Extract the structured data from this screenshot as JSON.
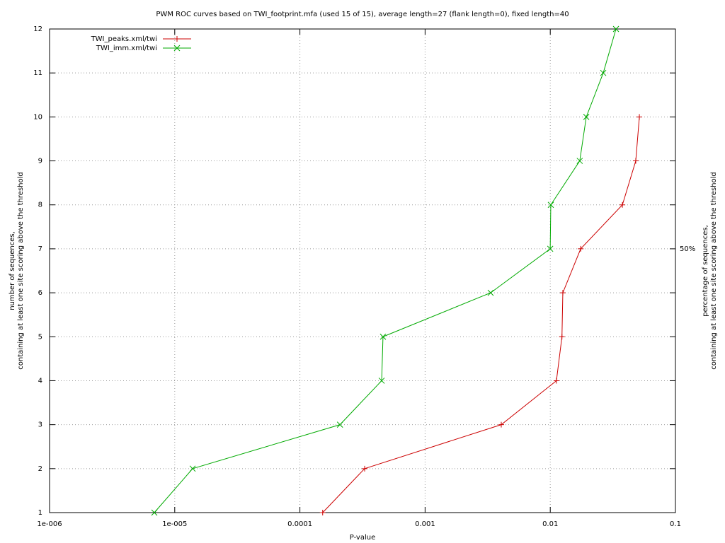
{
  "chart_data": {
    "type": "line",
    "title": "PWM ROC curves based on TWI_footprint.mfa (used 15 of 15), average length=27 (flank length=0), fixed length=40",
    "xlabel": "P-value",
    "ylabel": [
      "number of sequences,",
      "containing at least one site scoring above the threshold"
    ],
    "y2label": [
      "percentage of sequences,",
      "containing at least one site scoring above the threshold"
    ],
    "xscale": "log",
    "xlim": [
      1e-06,
      0.1
    ],
    "xticks": [
      {
        "value": 1e-06,
        "label": "1e-006"
      },
      {
        "value": 1e-05,
        "label": "1e-005"
      },
      0.0001,
      0.001,
      0.01,
      0.1
    ],
    "ylim": [
      1,
      12
    ],
    "yticks": [
      1,
      2,
      3,
      4,
      5,
      6,
      7,
      8,
      9,
      10,
      11,
      12
    ],
    "y2lim": [
      7.14,
      85.71
    ],
    "y2ticks": [
      {
        "value": 50,
        "label": "50%"
      }
    ],
    "grid": true,
    "legend": "top-left",
    "series": [
      {
        "name": "TWI_peaks.xml/twi",
        "color": "#cc0000",
        "marker": "plus",
        "x": [
          0.000152,
          0.000329,
          0.00406,
          0.0112,
          0.0124,
          0.0126,
          0.0175,
          0.0377,
          0.0482,
          0.0515
        ],
        "values": [
          1,
          2,
          3,
          4,
          5,
          6,
          7,
          8,
          9,
          10
        ]
      },
      {
        "name": "TWI_imm.xml/twi",
        "color": "#00aa00",
        "marker": "cross",
        "x": [
          6.87e-06,
          1.39e-05,
          0.000209,
          0.00045,
          0.000461,
          0.00334,
          0.00999,
          0.0101,
          0.0172,
          0.0194,
          0.0265,
          0.0335
        ],
        "values": [
          1,
          2,
          3,
          4,
          5,
          6,
          7,
          8,
          9,
          10,
          11,
          12
        ]
      }
    ]
  }
}
